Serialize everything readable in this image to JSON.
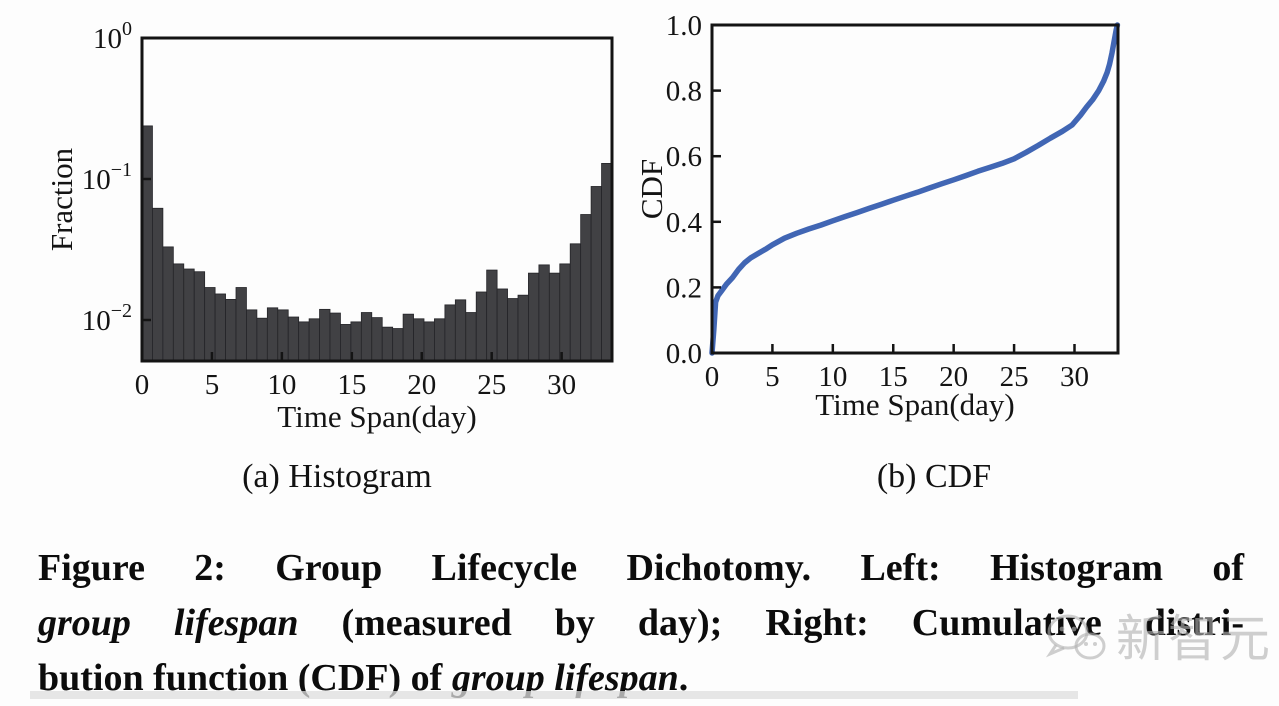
{
  "figure": {
    "subcaption_a": "(a) Histogram",
    "subcaption_b": "(b) CDF",
    "caption_lines": [
      {
        "justify": true,
        "segments": [
          {
            "text": "Figure 2: Group Lifecycle Dichotomy. Left: Histogram of",
            "style": "normal"
          }
        ]
      },
      {
        "justify": true,
        "segments": [
          {
            "text": "group lifespan",
            "style": "italic"
          },
          {
            "text": " (measured by day); Right: Cumulative distri-",
            "style": "normal"
          }
        ]
      },
      {
        "justify": false,
        "segments": [
          {
            "text": "bution function (CDF) of ",
            "style": "normal"
          },
          {
            "text": "group lifespan",
            "style": "italic"
          },
          {
            "text": ".",
            "style": "normal"
          }
        ]
      }
    ],
    "watermark": {
      "text": "新智元",
      "icon": "wechat-logo",
      "color": "#b2b2b2"
    }
  },
  "chart_data": [
    {
      "type": "bar",
      "title": "(a) Histogram",
      "xlabel": "Time Span(day)",
      "ylabel": "Fraction",
      "x_ticks": [
        0,
        5,
        10,
        15,
        20,
        25,
        30
      ],
      "y_ticks": [
        {
          "v": 1,
          "base": "10",
          "exp": "0"
        },
        {
          "v": 0.1,
          "base": "10",
          "exp": "−1"
        },
        {
          "v": 0.01,
          "base": "10",
          "exp": "−2"
        }
      ],
      "y_scale": "log",
      "xlim": [
        0,
        33.6
      ],
      "ylim": [
        0.0051,
        1.0
      ],
      "bar_color": "#414144",
      "bar_edge_color": "#242428",
      "bin_width_days": 0.7467,
      "values": [
        0.238,
        0.062,
        0.033,
        0.025,
        0.023,
        0.022,
        0.017,
        0.0153,
        0.014,
        0.017,
        0.0118,
        0.0103,
        0.0122,
        0.0118,
        0.0105,
        0.0097,
        0.0102,
        0.0119,
        0.0112,
        0.0093,
        0.0097,
        0.0113,
        0.0104,
        0.0089,
        0.0087,
        0.011,
        0.0102,
        0.0097,
        0.0102,
        0.0128,
        0.0139,
        0.0113,
        0.0158,
        0.0226,
        0.0166,
        0.0142,
        0.015,
        0.0215,
        0.0246,
        0.0215,
        0.025,
        0.0347,
        0.056,
        0.0885,
        0.129
      ]
    },
    {
      "type": "line",
      "title": "(b) CDF",
      "xlabel": "Time Span(day)",
      "ylabel": "CDF",
      "x_ticks": [
        0,
        5,
        10,
        15,
        20,
        25,
        30
      ],
      "y_ticks": [
        {
          "v": 0.0,
          "label": "0.0"
        },
        {
          "v": 0.2,
          "label": "0.2"
        },
        {
          "v": 0.4,
          "label": "0.4"
        },
        {
          "v": 0.6,
          "label": "0.6"
        },
        {
          "v": 0.8,
          "label": "0.8"
        },
        {
          "v": 1.0,
          "label": "1.0"
        }
      ],
      "xlim": [
        0,
        33.6
      ],
      "ylim": [
        0.0,
        1.0
      ],
      "line_color": "#4166b4",
      "points": [
        [
          0,
          0
        ],
        [
          0.15,
          0.07
        ],
        [
          0.3,
          0.155
        ],
        [
          0.5,
          0.175
        ],
        [
          0.8,
          0.19
        ],
        [
          1.2,
          0.21
        ],
        [
          1.7,
          0.23
        ],
        [
          2.2,
          0.255
        ],
        [
          2.7,
          0.275
        ],
        [
          3.2,
          0.29
        ],
        [
          3.8,
          0.303
        ],
        [
          4.5,
          0.318
        ],
        [
          5,
          0.33
        ],
        [
          6,
          0.35
        ],
        [
          7,
          0.365
        ],
        [
          8,
          0.378
        ],
        [
          9,
          0.39
        ],
        [
          10,
          0.403
        ],
        [
          11,
          0.416
        ],
        [
          12,
          0.428
        ],
        [
          13,
          0.441
        ],
        [
          14,
          0.453
        ],
        [
          15,
          0.466
        ],
        [
          16,
          0.478
        ],
        [
          17,
          0.49
        ],
        [
          18,
          0.503
        ],
        [
          19,
          0.516
        ],
        [
          20,
          0.528
        ],
        [
          21,
          0.541
        ],
        [
          22,
          0.554
        ],
        [
          23,
          0.566
        ],
        [
          24,
          0.578
        ],
        [
          25,
          0.592
        ],
        [
          26,
          0.612
        ],
        [
          27,
          0.633
        ],
        [
          28,
          0.655
        ],
        [
          29,
          0.676
        ],
        [
          29.8,
          0.695
        ],
        [
          30.5,
          0.725
        ],
        [
          31,
          0.75
        ],
        [
          31.5,
          0.772
        ],
        [
          32,
          0.8
        ],
        [
          32.4,
          0.828
        ],
        [
          32.7,
          0.855
        ],
        [
          32.9,
          0.88
        ],
        [
          33.1,
          0.915
        ],
        [
          33.3,
          0.955
        ],
        [
          33.45,
          0.985
        ],
        [
          33.55,
          1.0
        ]
      ]
    }
  ]
}
